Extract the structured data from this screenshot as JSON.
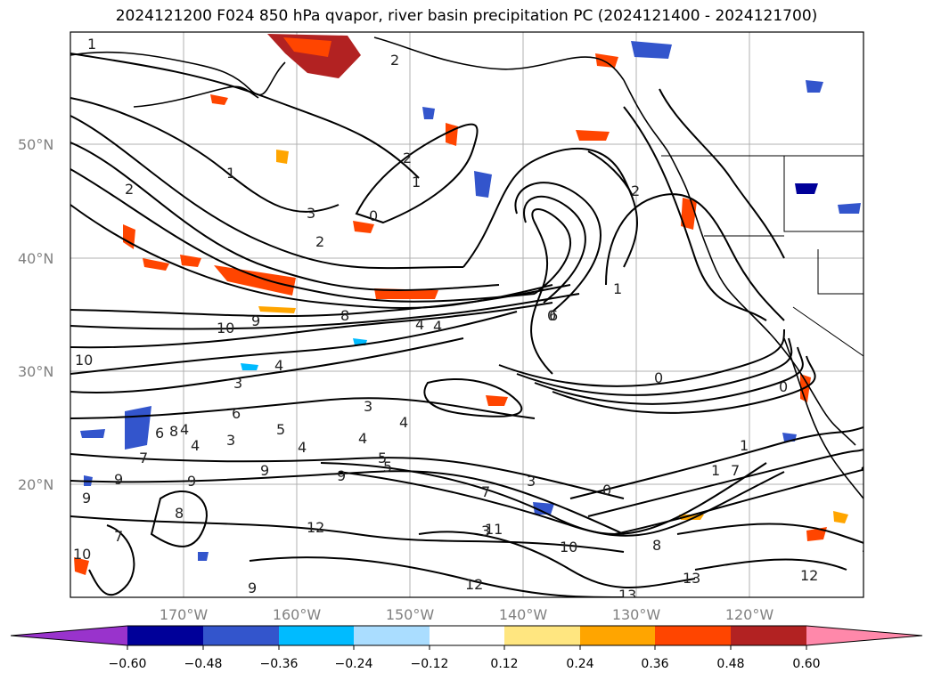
{
  "title": "2024121200 F024 850 hPa qvapor, river basin precipitation PC (2024121400 - 2024121700)",
  "latitude_labels": [
    "50°N",
    "40°N",
    "30°N",
    "20°N"
  ],
  "longitude_labels": [
    "170°W",
    "160°W",
    "150°W",
    "140°W",
    "130°W",
    "120°W"
  ],
  "colorbar": {
    "colors": [
      "#9933cc",
      "#000099",
      "#3355cc",
      "#00bbff",
      "#aaddff",
      "#ffffff",
      "#ffe680",
      "#ffa500",
      "#ff4500",
      "#b22222",
      "#ff88aa"
    ],
    "tick_labels": [
      "−0.60",
      "−0.48",
      "−0.36",
      "−0.24",
      "−0.12",
      "0.12",
      "0.24",
      "0.36",
      "0.48",
      "0.60"
    ]
  },
  "contour_labels": [
    "1",
    "1",
    "2",
    "2",
    "1",
    "2",
    "3",
    "2",
    "0",
    "10",
    "9",
    "8",
    "10",
    "3",
    "3",
    "5",
    "6",
    "4",
    "1",
    "0",
    "0",
    "2",
    "3",
    "5",
    "6",
    "4",
    "4",
    "3",
    "4",
    "4",
    "8",
    "6",
    "7",
    "4",
    "5",
    "4",
    "4",
    "9",
    "9",
    "9",
    "9",
    "9",
    "8",
    "7",
    "12",
    "7",
    "3",
    "0",
    "11",
    "10",
    "8",
    "12",
    "13",
    "13",
    "12",
    "1",
    "1",
    "7",
    "10",
    "9",
    "0"
  ]
}
